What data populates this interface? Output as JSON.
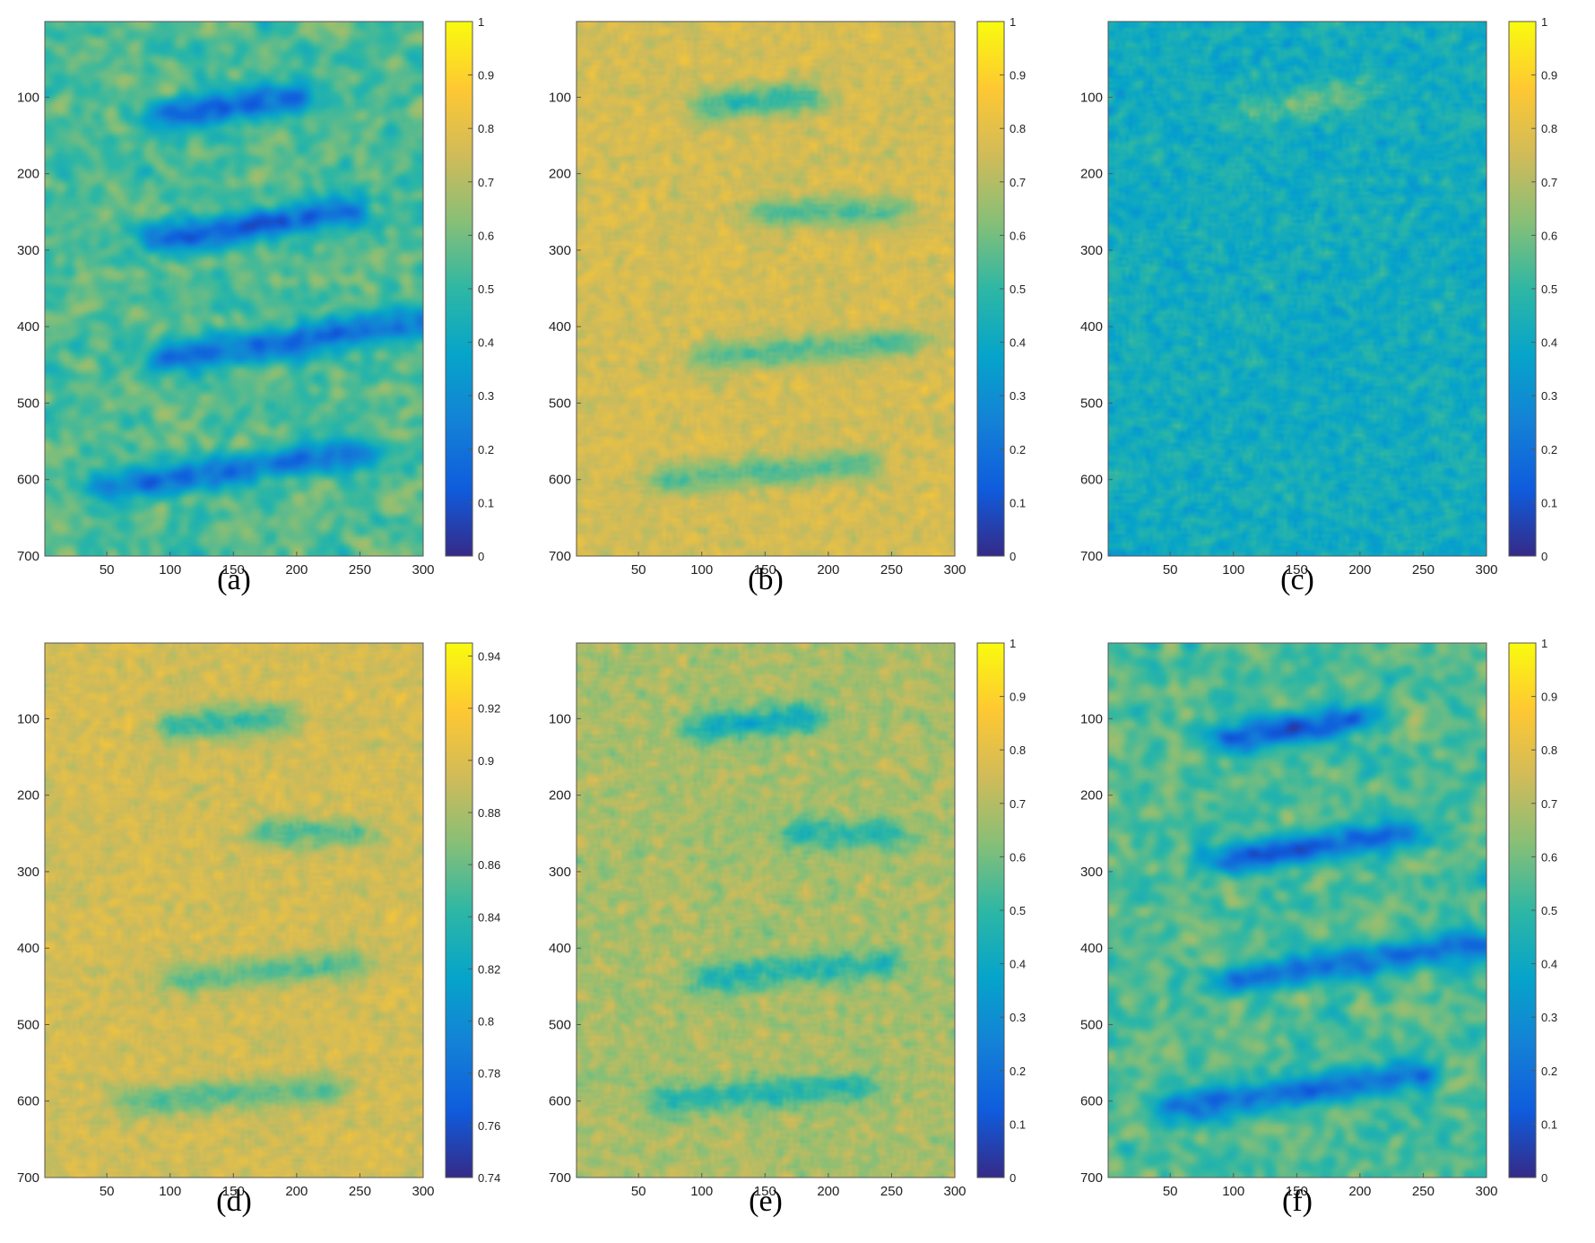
{
  "figure": {
    "colormap": "parula",
    "colormap_stops": [
      "#352a87",
      "#0f5cdd",
      "#1481d6",
      "#06a4ca",
      "#2eb7a4",
      "#87bf77",
      "#d1bb59",
      "#fec832",
      "#f9fb0e"
    ]
  },
  "chart_data": [
    {
      "type": "heatmap",
      "panel_label": "(a)",
      "xlim": [
        1,
        300
      ],
      "ylim": [
        1,
        700
      ],
      "y_reversed": true,
      "x_ticks": [
        "50",
        "100",
        "150",
        "200",
        "250",
        "300"
      ],
      "y_ticks": [
        "100",
        "200",
        "300",
        "400",
        "500",
        "600",
        "700"
      ],
      "colorbar": {
        "min": 0,
        "max": 1,
        "ticks": [
          "0",
          "0.1",
          "0.2",
          "0.3",
          "0.4",
          "0.5",
          "0.6",
          "0.7",
          "0.8",
          "0.9",
          "1"
        ]
      },
      "background_level": 0.55,
      "noise_amplitude": 0.14,
      "noise_style": "blobby",
      "features": [
        {
          "x1": 100,
          "y1": 125,
          "x2": 195,
          "y2": 100,
          "depth": 0.4
        },
        {
          "x1": 95,
          "y1": 285,
          "x2": 235,
          "y2": 250,
          "depth": 0.4
        },
        {
          "x1": 105,
          "y1": 440,
          "x2": 295,
          "y2": 395,
          "depth": 0.35
        },
        {
          "x1": 55,
          "y1": 610,
          "x2": 245,
          "y2": 565,
          "depth": 0.35
        }
      ]
    },
    {
      "type": "heatmap",
      "panel_label": "(b)",
      "xlim": [
        1,
        300
      ],
      "ylim": [
        1,
        700
      ],
      "y_reversed": true,
      "x_ticks": [
        "50",
        "100",
        "150",
        "200",
        "250",
        "300"
      ],
      "y_ticks": [
        "100",
        "200",
        "300",
        "400",
        "500",
        "600",
        "700"
      ],
      "colorbar": {
        "min": 0,
        "max": 1,
        "ticks": [
          "0",
          "0.1",
          "0.2",
          "0.3",
          "0.4",
          "0.5",
          "0.6",
          "0.7",
          "0.8",
          "0.9",
          "1"
        ]
      },
      "background_level": 0.76,
      "noise_amplitude": 0.1,
      "noise_style": "speckle",
      "features": [
        {
          "x1": 108,
          "y1": 110,
          "x2": 180,
          "y2": 100,
          "depth": 0.25
        },
        {
          "x1": 155,
          "y1": 250,
          "x2": 245,
          "y2": 250,
          "depth": 0.2
        },
        {
          "x1": 110,
          "y1": 440,
          "x2": 260,
          "y2": 420,
          "depth": 0.2
        },
        {
          "x1": 75,
          "y1": 600,
          "x2": 225,
          "y2": 580,
          "depth": 0.2
        }
      ]
    },
    {
      "type": "heatmap",
      "panel_label": "(c)",
      "xlim": [
        1,
        300
      ],
      "ylim": [
        1,
        700
      ],
      "y_reversed": true,
      "x_ticks": [
        "50",
        "100",
        "150",
        "200",
        "250",
        "300"
      ],
      "y_ticks": [
        "100",
        "200",
        "300",
        "400",
        "500",
        "600",
        "700"
      ],
      "colorbar": {
        "min": 0,
        "max": 1,
        "ticks": [
          "0",
          "0.1",
          "0.2",
          "0.3",
          "0.4",
          "0.5",
          "0.6",
          "0.7",
          "0.8",
          "0.9",
          "1"
        ]
      },
      "background_level": 0.42,
      "noise_amplitude": 0.14,
      "noise_style": "speckle",
      "features": [
        {
          "x1": 120,
          "y1": 120,
          "x2": 195,
          "y2": 95,
          "depth": -0.15
        }
      ]
    },
    {
      "type": "heatmap",
      "panel_label": "(d)",
      "xlim": [
        1,
        300
      ],
      "ylim": [
        1,
        700
      ],
      "y_reversed": true,
      "x_ticks": [
        "50",
        "100",
        "150",
        "200",
        "250",
        "300"
      ],
      "y_ticks": [
        "100",
        "200",
        "300",
        "400",
        "500",
        "600",
        "700"
      ],
      "colorbar": {
        "min": 0.74,
        "max": 0.945,
        "ticks": [
          "0.74",
          "0.76",
          "0.78",
          "0.8",
          "0.82",
          "0.84",
          "0.86",
          "0.88",
          "0.9",
          "0.92",
          "0.94"
        ]
      },
      "background_level": 0.895,
      "noise_amplitude": 0.02,
      "noise_style": "speckle",
      "features": [
        {
          "x1": 108,
          "y1": 110,
          "x2": 180,
          "y2": 100,
          "depth": 0.05
        },
        {
          "x1": 180,
          "y1": 250,
          "x2": 245,
          "y2": 250,
          "depth": 0.04
        },
        {
          "x1": 110,
          "y1": 440,
          "x2": 240,
          "y2": 420,
          "depth": 0.04
        },
        {
          "x1": 75,
          "y1": 600,
          "x2": 220,
          "y2": 585,
          "depth": 0.04
        }
      ]
    },
    {
      "type": "heatmap",
      "panel_label": "(e)",
      "xlim": [
        1,
        300
      ],
      "ylim": [
        1,
        700
      ],
      "y_reversed": true,
      "x_ticks": [
        "50",
        "100",
        "150",
        "200",
        "250",
        "300"
      ],
      "y_ticks": [
        "100",
        "200",
        "300",
        "400",
        "500",
        "600",
        "700"
      ],
      "colorbar": {
        "min": 0,
        "max": 1,
        "ticks": [
          "0",
          "0.1",
          "0.2",
          "0.3",
          "0.4",
          "0.5",
          "0.6",
          "0.7",
          "0.8",
          "0.9",
          "1"
        ]
      },
      "background_level": 0.68,
      "noise_amplitude": 0.12,
      "noise_style": "speckle",
      "features": [
        {
          "x1": 108,
          "y1": 110,
          "x2": 180,
          "y2": 100,
          "depth": 0.25
        },
        {
          "x1": 180,
          "y1": 250,
          "x2": 245,
          "y2": 250,
          "depth": 0.2
        },
        {
          "x1": 110,
          "y1": 440,
          "x2": 240,
          "y2": 420,
          "depth": 0.2
        },
        {
          "x1": 75,
          "y1": 600,
          "x2": 225,
          "y2": 580,
          "depth": 0.2
        }
      ]
    },
    {
      "type": "heatmap",
      "panel_label": "(f)",
      "xlim": [
        1,
        300
      ],
      "ylim": [
        1,
        700
      ],
      "y_reversed": true,
      "x_ticks": [
        "50",
        "100",
        "150",
        "200",
        "250",
        "300"
      ],
      "y_ticks": [
        "100",
        "200",
        "300",
        "400",
        "500",
        "600",
        "700"
      ],
      "colorbar": {
        "min": 0,
        "max": 1,
        "ticks": [
          "0",
          "0.1",
          "0.2",
          "0.3",
          "0.4",
          "0.5",
          "0.6",
          "0.7",
          "0.8",
          "0.9",
          "1"
        ]
      },
      "background_level": 0.55,
      "noise_amplitude": 0.14,
      "noise_style": "blobby",
      "features": [
        {
          "x1": 100,
          "y1": 125,
          "x2": 195,
          "y2": 100,
          "depth": 0.4
        },
        {
          "x1": 95,
          "y1": 285,
          "x2": 235,
          "y2": 250,
          "depth": 0.4
        },
        {
          "x1": 105,
          "y1": 440,
          "x2": 295,
          "y2": 395,
          "depth": 0.35
        },
        {
          "x1": 55,
          "y1": 610,
          "x2": 245,
          "y2": 565,
          "depth": 0.35
        }
      ]
    }
  ]
}
